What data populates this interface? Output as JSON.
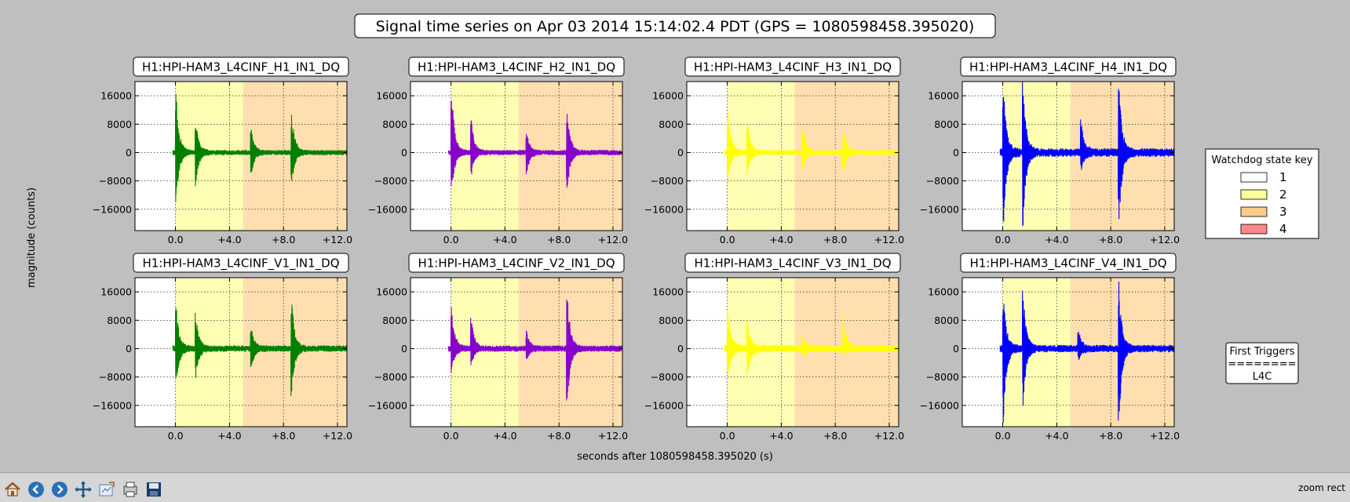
{
  "figure": {
    "title": "Signal time series on Apr 03 2014 15:14:02.4 PDT (GPS = 1080598458.395020)",
    "ylabel": "magnitude (counts)",
    "xlabel": "seconds after 1080598458.395020 (s)"
  },
  "chart_data": {
    "type": "line",
    "xlim": [
      -3,
      12.7
    ],
    "ylim": [
      -22000,
      20000
    ],
    "x_ticks": [
      0,
      4,
      8,
      12
    ],
    "x_tick_labels": [
      "0.0",
      "+4.0",
      "+8.0",
      "+12.0"
    ],
    "y_ticks": [
      16000,
      8000,
      0,
      -8000,
      -16000
    ],
    "y_tick_labels": [
      "16000",
      "8000",
      "0",
      "−8000",
      "−16000"
    ],
    "grid": true,
    "state_bands": [
      {
        "state": "2",
        "from": 0,
        "to": 5.0,
        "color": "#ffffb4"
      },
      {
        "state": "3",
        "from": 5.0,
        "to": 12.7,
        "color": "#ffdfb0"
      }
    ],
    "panels": [
      {
        "name": "H1:HPI-HAM3_L4CINF_H1_IN1_DQ",
        "color": "#008000",
        "noise": 500,
        "spikes": [
          [
            0.05,
            17000,
            -15000
          ],
          [
            1.5,
            8800,
            -9000
          ],
          [
            5.6,
            6500,
            -6500
          ],
          [
            8.6,
            11500,
            -9500
          ]
        ]
      },
      {
        "name": "H1:HPI-HAM3_L4CINF_H2_IN1_DQ",
        "color": "#8800cc",
        "noise": 500,
        "spikes": [
          [
            0.05,
            17500,
            -12000
          ],
          [
            1.5,
            10000,
            -7000
          ],
          [
            5.6,
            6000,
            -6000
          ],
          [
            8.6,
            12500,
            -12000
          ]
        ]
      },
      {
        "name": "H1:HPI-HAM3_L4CINF_H3_IN1_DQ",
        "color": "#ffff00",
        "noise": 500,
        "spikes": [
          [
            0.05,
            12000,
            -8000
          ],
          [
            1.5,
            8500,
            -6000
          ],
          [
            5.6,
            7000,
            -5000
          ],
          [
            8.6,
            6500,
            -6000
          ]
        ]
      },
      {
        "name": "H1:HPI-HAM3_L4CINF_H4_IN1_DQ",
        "color": "#0000ff",
        "noise": 800,
        "spikes": [
          [
            0.05,
            20000,
            -22000
          ],
          [
            1.5,
            20000,
            -22000
          ],
          [
            5.8,
            9000,
            -5000
          ],
          [
            8.6,
            20000,
            -22000
          ]
        ]
      },
      {
        "name": "H1:HPI-HAM3_L4CINF_V1_IN1_DQ",
        "color": "#008000",
        "noise": 600,
        "spikes": [
          [
            0.05,
            12000,
            -11000
          ],
          [
            1.5,
            10000,
            -8000
          ],
          [
            5.6,
            6000,
            -6000
          ],
          [
            8.6,
            14000,
            -13000
          ]
        ]
      },
      {
        "name": "H1:HPI-HAM3_L4CINF_V2_IN1_DQ",
        "color": "#8800cc",
        "noise": 600,
        "spikes": [
          [
            0.05,
            12000,
            -7000
          ],
          [
            1.5,
            9000,
            -5000
          ],
          [
            5.6,
            5000,
            -3000
          ],
          [
            8.6,
            17000,
            -18000
          ]
        ]
      },
      {
        "name": "H1:HPI-HAM3_L4CINF_V3_IN1_DQ",
        "color": "#ffff00",
        "noise": 700,
        "spikes": [
          [
            0.05,
            11500,
            -8000
          ],
          [
            1.5,
            7000,
            -8000
          ],
          [
            5.6,
            3000,
            -2000
          ],
          [
            8.6,
            9000,
            -1000
          ]
        ]
      },
      {
        "name": "H1:HPI-HAM3_L4CINF_V4_IN1_DQ",
        "color": "#0000ff",
        "noise": 700,
        "spikes": [
          [
            0.05,
            15000,
            -20000
          ],
          [
            1.5,
            17000,
            -16000
          ],
          [
            5.6,
            5000,
            -3000
          ],
          [
            8.6,
            19000,
            -22000
          ]
        ]
      }
    ]
  },
  "legend": {
    "title": "Watchdog state key",
    "entries": [
      {
        "label": "1",
        "color": "#ffffff"
      },
      {
        "label": "2",
        "color": "#ffff99"
      },
      {
        "label": "3",
        "color": "#ffcc88"
      },
      {
        "label": "4",
        "color": "#ff8888"
      }
    ]
  },
  "triggers": {
    "lines": [
      "First Triggers",
      "========",
      "L4C"
    ]
  },
  "toolbar": {
    "buttons": [
      "home-icon",
      "back-icon",
      "forward-icon",
      "pan-icon",
      "subplots-icon",
      "configure-icon",
      "save-icon"
    ],
    "status": "zoom rect"
  }
}
